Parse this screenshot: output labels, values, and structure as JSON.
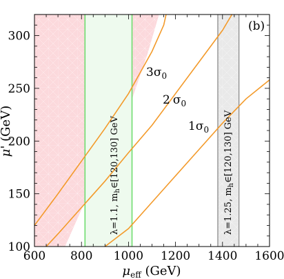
{
  "chart_data": {
    "type": "line",
    "panel_label": "(b)",
    "xlabel_main": "μ",
    "xlabel_sub": "eff",
    "xlabel_unit": " (GeV)",
    "ylabel_main": "μ'",
    "ylabel_unit": " (GeV)",
    "xlim": [
      600,
      1600
    ],
    "ylim": [
      100,
      320
    ],
    "x_ticks": [
      600,
      800,
      1000,
      1200,
      1400,
      1600
    ],
    "y_ticks": [
      100,
      150,
      200,
      250,
      300
    ],
    "series": [
      {
        "label_sigma": "3",
        "points": [
          [
            600,
            120
          ],
          [
            700,
            150
          ],
          [
            800,
            181
          ],
          [
            900,
            212
          ],
          [
            1000,
            245
          ],
          [
            1100,
            285
          ],
          [
            1150,
            310
          ],
          [
            1160,
            320
          ]
        ]
      },
      {
        "label_sigma": "2",
        "points": [
          [
            650,
            100
          ],
          [
            700,
            112
          ],
          [
            800,
            137
          ],
          [
            900,
            162
          ],
          [
            1000,
            189
          ],
          [
            1100,
            215
          ],
          [
            1200,
            245
          ],
          [
            1300,
            275
          ],
          [
            1400,
            305
          ],
          [
            1440,
            320
          ]
        ]
      },
      {
        "label_sigma": "1",
        "points": [
          [
            900,
            100
          ],
          [
            1000,
            117
          ],
          [
            1100,
            142
          ],
          [
            1200,
            167
          ],
          [
            1300,
            192
          ],
          [
            1400,
            217
          ],
          [
            1500,
            240
          ],
          [
            1600,
            258
          ]
        ]
      }
    ],
    "sigma_symbol": "σ",
    "sigma_sub": "0",
    "excluded_region": {
      "boundary": [
        [
          600,
          320
        ],
        [
          1130,
          320
        ],
        [
          1080,
          282
        ],
        [
          1000,
          230
        ],
        [
          900,
          180
        ],
        [
          800,
          135
        ],
        [
          750,
          110
        ],
        [
          730,
          100
        ],
        [
          600,
          100
        ]
      ],
      "color": "#fcd9dc"
    },
    "bands": [
      {
        "label": "λ=1.1, m",
        "label_sub": "h",
        "label_rest": "∈[120,130] GeV",
        "x_range": [
          815,
          1015
        ],
        "line_color": "#6edc6e",
        "fill": "#eefaee"
      },
      {
        "label": "λ=1.25, m",
        "label_sub": "h",
        "label_rest": "∈[120,130] GeV",
        "x_range": [
          1380,
          1470
        ],
        "line_color": "#8a8a8a",
        "fill": "#e9e9e9"
      }
    ],
    "curve_color": "#f39a2a"
  }
}
